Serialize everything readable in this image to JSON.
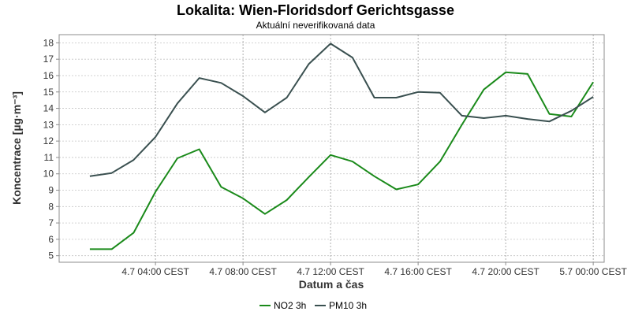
{
  "chart_data": {
    "type": "line",
    "title": "Lokalita: Wien-Floridsdorf Gerichtsgasse",
    "subtitle": "Aktuální neverifikovaná data",
    "xlabel": "Datum a čas",
    "ylabel": "Koncentrace [µg·m⁻³]",
    "x": [
      1,
      2,
      3,
      4,
      5,
      6,
      7,
      8,
      9,
      10,
      11,
      12,
      13,
      14,
      15,
      16,
      17,
      18,
      19,
      20,
      21,
      22,
      23,
      24
    ],
    "x_ticks": [
      {
        "x": 4,
        "label": "4.7 04:00 CEST"
      },
      {
        "x": 8,
        "label": "4.7 08:00 CEST"
      },
      {
        "x": 12,
        "label": "4.7 12:00 CEST"
      },
      {
        "x": 16,
        "label": "4.7 16:00 CEST"
      },
      {
        "x": 20,
        "label": "4.7 20:00 CEST"
      },
      {
        "x": 24,
        "label": "5.7 00:00 CEST"
      }
    ],
    "xlim": [
      -0.4,
      24.5
    ],
    "ylim": [
      4.6,
      18.5
    ],
    "y_ticks": [
      5,
      6,
      7,
      8,
      9,
      10,
      11,
      12,
      13,
      14,
      15,
      16,
      17,
      18
    ],
    "grid": true,
    "legend_position": "bottom",
    "series": [
      {
        "name": "NO2 3h",
        "color": "#1a8a1a",
        "values": [
          5.4,
          5.4,
          6.4,
          8.9,
          10.95,
          11.5,
          9.2,
          8.5,
          7.55,
          8.4,
          9.8,
          11.15,
          10.75,
          9.85,
          9.05,
          9.35,
          10.75,
          13.0,
          15.15,
          16.2,
          16.1,
          13.65,
          13.5,
          15.6
        ]
      },
      {
        "name": "PM10 3h",
        "color": "#3a5050",
        "values": [
          9.85,
          10.05,
          10.85,
          12.25,
          14.3,
          15.85,
          15.55,
          14.75,
          13.75,
          14.65,
          16.7,
          17.95,
          17.1,
          14.65,
          14.65,
          15.0,
          14.95,
          13.55,
          13.4,
          13.55,
          13.35,
          13.2,
          13.85,
          14.7
        ]
      }
    ]
  }
}
